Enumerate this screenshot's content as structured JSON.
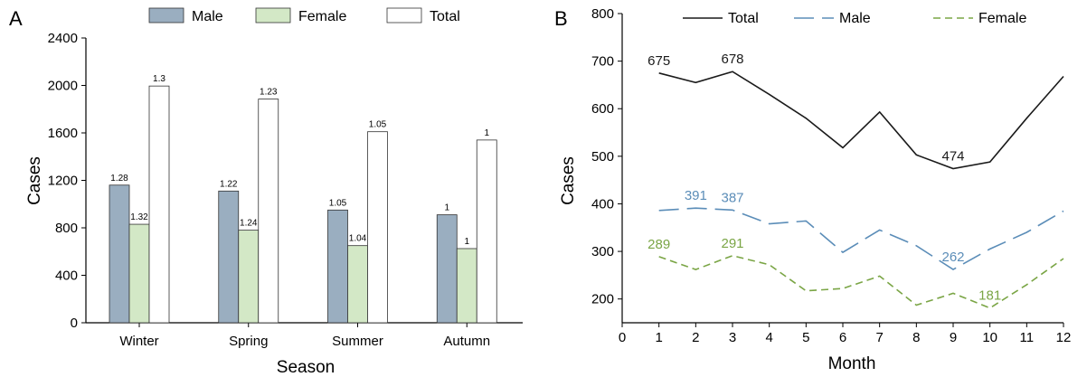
{
  "chart_data": [
    {
      "panel": "A",
      "type": "bar",
      "xlabel": "Season",
      "ylabel": "Cases",
      "ylim": [
        0,
        2400
      ],
      "yticks": [
        0,
        400,
        800,
        1200,
        1600,
        2000,
        2400
      ],
      "categories": [
        "Winter",
        "Spring",
        "Summer",
        "Autumn"
      ],
      "legend_position": "top",
      "series": [
        {
          "name": "Male",
          "color": "#9aaec0",
          "values": [
            1160,
            1110,
            950,
            910
          ],
          "labels": [
            "1.28",
            "1.22",
            "1.05",
            "1"
          ]
        },
        {
          "name": "Female",
          "color": "#d3e8c6",
          "values": [
            830,
            780,
            650,
            625
          ],
          "labels": [
            "1.32",
            "1.24",
            "1.04",
            "1"
          ]
        },
        {
          "name": "Total",
          "color": "#ffffff",
          "values": [
            1995,
            1885,
            1610,
            1540
          ],
          "labels": [
            "1.3",
            "1.23",
            "1.05",
            "1"
          ]
        }
      ]
    },
    {
      "panel": "B",
      "type": "line",
      "xlabel": "Month",
      "ylabel": "Cases",
      "xlim": [
        0,
        12
      ],
      "xticks": [
        0,
        1,
        2,
        3,
        4,
        5,
        6,
        7,
        8,
        9,
        10,
        11,
        12
      ],
      "ylim": [
        150,
        800
      ],
      "yticks": [
        200,
        300,
        400,
        500,
        600,
        700,
        800
      ],
      "x": [
        1,
        2,
        3,
        4,
        5,
        6,
        7,
        8,
        9,
        10,
        11,
        12
      ],
      "legend_position": "top",
      "series": [
        {
          "name": "Total",
          "color": "#1a1a1a",
          "dash": "solid",
          "values": [
            675,
            655,
            678,
            630,
            580,
            518,
            593,
            503,
            474,
            488,
            580,
            668
          ],
          "annotations": [
            {
              "x": 1,
              "text": "675"
            },
            {
              "x": 3,
              "text": "678"
            },
            {
              "x": 9,
              "text": "474"
            }
          ]
        },
        {
          "name": "Male",
          "color": "#5b8db8",
          "dash": "long",
          "values": [
            386,
            391,
            387,
            358,
            364,
            298,
            345,
            312,
            262,
            305,
            340,
            385
          ],
          "annotations": [
            {
              "x": 2,
              "text": "391"
            },
            {
              "x": 3,
              "text": "387"
            },
            {
              "x": 9,
              "text": "262"
            }
          ]
        },
        {
          "name": "Female",
          "color": "#7aa545",
          "dash": "short",
          "values": [
            289,
            262,
            291,
            272,
            217,
            222,
            248,
            187,
            212,
            181,
            230,
            285
          ],
          "annotations": [
            {
              "x": 1,
              "text": "289"
            },
            {
              "x": 3,
              "text": "291"
            },
            {
              "x": 10,
              "text": "181"
            }
          ]
        }
      ]
    }
  ]
}
